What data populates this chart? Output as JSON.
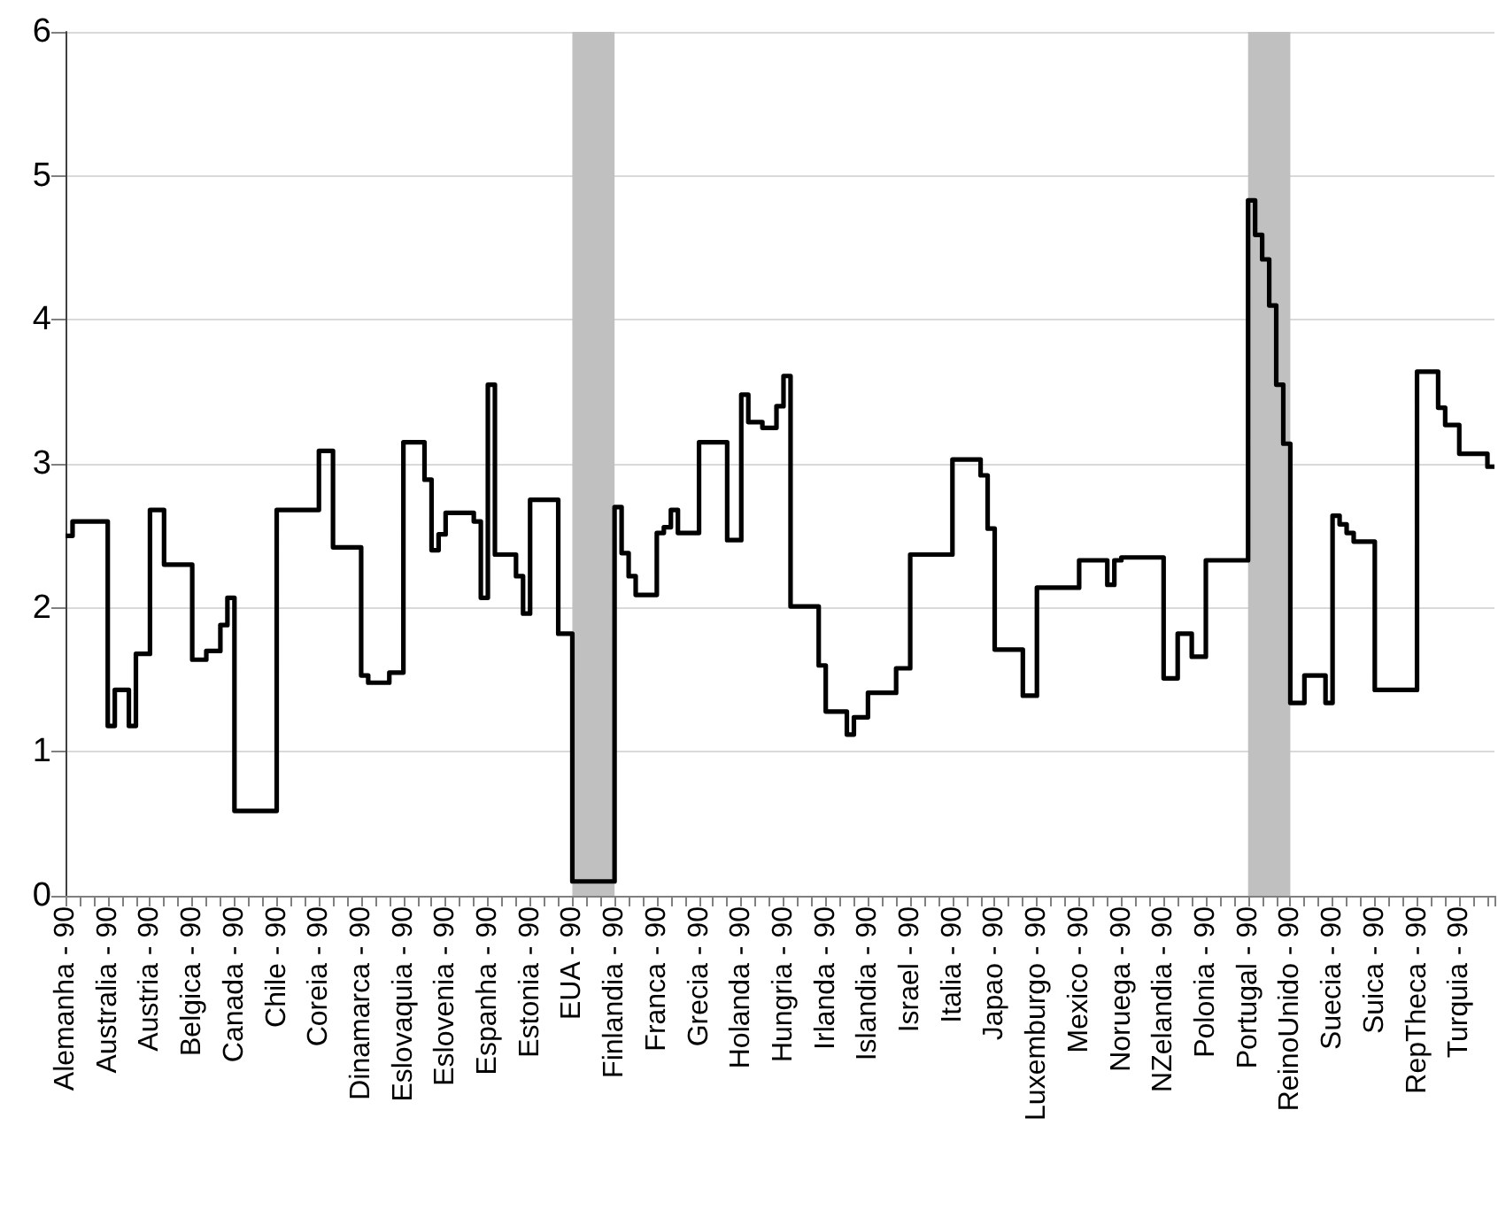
{
  "chart_data": {
    "type": "step",
    "categories": [
      "Alemanha - 90",
      null,
      null,
      null,
      null,
      null,
      "Australia - 90",
      null,
      null,
      null,
      null,
      null,
      "Austria - 90",
      null,
      null,
      null,
      null,
      null,
      "Belgica - 90",
      null,
      null,
      null,
      null,
      null,
      "Canada - 90",
      null,
      null,
      null,
      null,
      null,
      "Chile - 90",
      null,
      null,
      null,
      null,
      null,
      "Coreia - 90",
      null,
      null,
      null,
      null,
      null,
      "Dinamarca - 90",
      null,
      null,
      null,
      null,
      null,
      "Eslovaquia - 90",
      null,
      null,
      null,
      null,
      null,
      "Eslovenia - 90",
      null,
      null,
      null,
      null,
      null,
      "Espanha - 90",
      null,
      null,
      null,
      null,
      null,
      "Estonia - 90",
      null,
      null,
      null,
      null,
      null,
      "EUA - 90",
      null,
      null,
      null,
      null,
      null,
      "Finlandia - 90",
      null,
      null,
      null,
      null,
      null,
      "Franca - 90",
      null,
      null,
      null,
      null,
      null,
      "Grecia - 90",
      null,
      null,
      null,
      null,
      null,
      "Holanda - 90",
      null,
      null,
      null,
      null,
      null,
      "Hungria - 90",
      null,
      null,
      null,
      null,
      null,
      "Irlanda - 90",
      null,
      null,
      null,
      null,
      null,
      "Islandia - 90",
      null,
      null,
      null,
      null,
      null,
      "Israel - 90",
      null,
      null,
      null,
      null,
      null,
      "Italia - 90",
      null,
      null,
      null,
      null,
      null,
      "Japao - 90",
      null,
      null,
      null,
      null,
      null,
      "Luxemburgo - 90",
      null,
      null,
      null,
      null,
      null,
      "Mexico - 90",
      null,
      null,
      null,
      null,
      null,
      "Noruega - 90",
      null,
      null,
      null,
      null,
      null,
      "NZelandia - 90",
      null,
      null,
      null,
      null,
      null,
      "Polonia - 90",
      null,
      null,
      null,
      null,
      null,
      "Portugal - 90",
      null,
      null,
      null,
      null,
      null,
      "ReinoUnido - 90",
      null,
      null,
      null,
      null,
      null,
      "Suecia - 90",
      null,
      null,
      null,
      null,
      null,
      "Suica - 90",
      null,
      null,
      null,
      null,
      null,
      "RepTheca - 90",
      null,
      null,
      null,
      null,
      null,
      "Turquia - 90",
      null,
      null,
      null,
      null,
      null
    ],
    "series": [
      {
        "color": "#000000",
        "values": [
          2.5,
          2.6,
          2.6,
          2.6,
          2.6,
          2.6,
          1.18,
          1.43,
          1.43,
          1.18,
          1.68,
          1.68,
          2.68,
          2.68,
          2.3,
          2.3,
          2.3,
          2.3,
          1.64,
          1.64,
          1.7,
          1.7,
          1.88,
          2.07,
          0.59,
          0.59,
          0.59,
          0.59,
          0.59,
          0.59,
          2.68,
          2.68,
          2.68,
          2.68,
          2.68,
          2.68,
          3.09,
          3.09,
          2.42,
          2.42,
          2.42,
          2.42,
          1.53,
          1.48,
          1.48,
          1.48,
          1.55,
          1.55,
          3.15,
          3.15,
          3.15,
          2.89,
          2.4,
          2.51,
          2.66,
          2.66,
          2.66,
          2.66,
          2.6,
          2.07,
          3.55,
          2.37,
          2.37,
          2.37,
          2.22,
          1.96,
          2.75,
          2.75,
          2.75,
          2.75,
          1.82,
          1.82,
          0.1,
          0.1,
          0.1,
          0.1,
          0.1,
          0.1,
          2.7,
          2.38,
          2.22,
          2.09,
          2.09,
          2.09,
          2.52,
          2.56,
          2.68,
          2.52,
          2.52,
          2.52,
          3.15,
          3.15,
          3.15,
          3.15,
          2.47,
          2.47,
          3.48,
          3.29,
          3.29,
          3.25,
          3.25,
          3.4,
          3.61,
          2.01,
          2.01,
          2.01,
          2.01,
          1.6,
          1.28,
          1.28,
          1.28,
          1.12,
          1.24,
          1.24,
          1.41,
          1.41,
          1.41,
          1.41,
          1.58,
          1.58,
          2.37,
          2.37,
          2.37,
          2.37,
          2.37,
          2.37,
          3.03,
          3.03,
          3.03,
          3.03,
          2.92,
          2.55,
          1.71,
          1.71,
          1.71,
          1.71,
          1.39,
          1.39,
          2.14,
          2.14,
          2.14,
          2.14,
          2.14,
          2.14,
          2.33,
          2.33,
          2.33,
          2.33,
          2.16,
          2.33,
          2.35,
          2.35,
          2.35,
          2.35,
          2.35,
          2.35,
          1.51,
          1.51,
          1.82,
          1.82,
          1.66,
          1.66,
          2.33,
          2.33,
          2.33,
          2.33,
          2.33,
          2.33,
          4.83,
          4.59,
          4.42,
          4.1,
          3.55,
          3.14,
          1.34,
          1.34,
          1.53,
          1.53,
          1.53,
          1.34,
          2.64,
          2.58,
          2.52,
          2.46,
          2.46,
          2.46,
          1.43,
          1.43,
          1.43,
          1.43,
          1.43,
          1.43,
          3.64,
          3.64,
          3.64,
          3.39,
          3.27,
          3.27,
          3.07,
          3.07,
          3.07,
          3.07,
          2.98,
          2.98
        ]
      }
    ],
    "ylim": [
      0,
      6
    ],
    "yticks": [
      0,
      1,
      2,
      3,
      4,
      5,
      6
    ],
    "grid": "y",
    "marker": "none",
    "line_style": "solid",
    "bands": [
      {
        "axis": "x",
        "from": "EUA - 90",
        "to": "Finlandia - 90",
        "color": "#c0c0c0"
      },
      {
        "axis": "x",
        "from": "Portugal - 90",
        "to": "ReinoUnido - 90",
        "color": "#c0c0c0"
      }
    ]
  }
}
